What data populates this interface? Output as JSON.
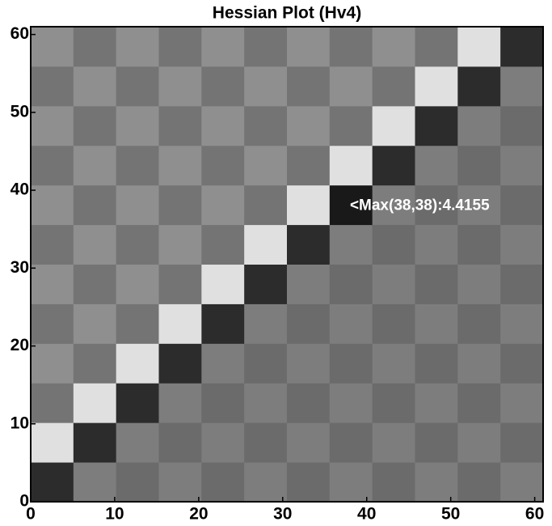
{
  "chart_data": {
    "type": "heatmap",
    "title": "Hessian Plot (Hv4)",
    "xlim": [
      0,
      61
    ],
    "ylim": [
      0,
      61
    ],
    "xticks": [
      0,
      10,
      20,
      30,
      40,
      50,
      60
    ],
    "yticks": [
      0,
      10,
      20,
      30,
      40,
      50,
      60
    ],
    "clim": [
      0,
      4.5
    ],
    "colormap": [
      "#e0e0e0",
      "#151515"
    ],
    "z": [
      [
        4,
        2.2,
        2.6,
        2.2,
        2.6,
        2.2,
        2.6,
        2.2,
        2.6,
        2.2,
        2.6,
        2.2
      ],
      [
        0,
        4,
        2.2,
        2.6,
        2.2,
        2.6,
        2.2,
        2.6,
        2.2,
        2.6,
        2.2,
        2.6
      ],
      [
        2.4,
        0,
        4,
        2.2,
        2.6,
        2.2,
        2.6,
        2.2,
        2.6,
        2.2,
        2.6,
        2.2
      ],
      [
        1.8,
        2.4,
        0,
        4,
        2.2,
        2.6,
        2.2,
        2.6,
        2.2,
        2.6,
        2.2,
        2.6
      ],
      [
        2.4,
        1.8,
        2.4,
        0,
        4,
        2.2,
        2.6,
        2.2,
        2.6,
        2.2,
        2.6,
        2.2
      ],
      [
        1.8,
        2.4,
        1.8,
        2.4,
        0,
        4,
        2.2,
        2.6,
        2.2,
        2.6,
        2.2,
        2.6
      ],
      [
        2.4,
        1.8,
        2.4,
        1.8,
        2.4,
        0,
        4,
        2.2,
        2.6,
        2.2,
        2.6,
        2.2
      ],
      [
        1.8,
        2.4,
        1.8,
        2.4,
        1.8,
        2.4,
        0,
        4.4155,
        2.2,
        2.6,
        2.2,
        2.6
      ],
      [
        2.4,
        1.8,
        2.4,
        1.8,
        2.4,
        1.8,
        2.4,
        0,
        4,
        2.2,
        2.6,
        2.2
      ],
      [
        1.8,
        2.4,
        1.8,
        2.4,
        1.8,
        2.4,
        1.8,
        2.4,
        0,
        4,
        2.2,
        2.6
      ],
      [
        2.4,
        1.8,
        2.4,
        1.8,
        2.4,
        1.8,
        2.4,
        1.8,
        2.4,
        0,
        4,
        2.2
      ],
      [
        1.8,
        2.4,
        1.8,
        2.4,
        1.8,
        2.4,
        1.8,
        2.4,
        1.8,
        2.4,
        0,
        4
      ]
    ],
    "annotations": [
      {
        "text": "<Max(38,38):4.4155",
        "x": 38,
        "y": 38
      }
    ]
  }
}
